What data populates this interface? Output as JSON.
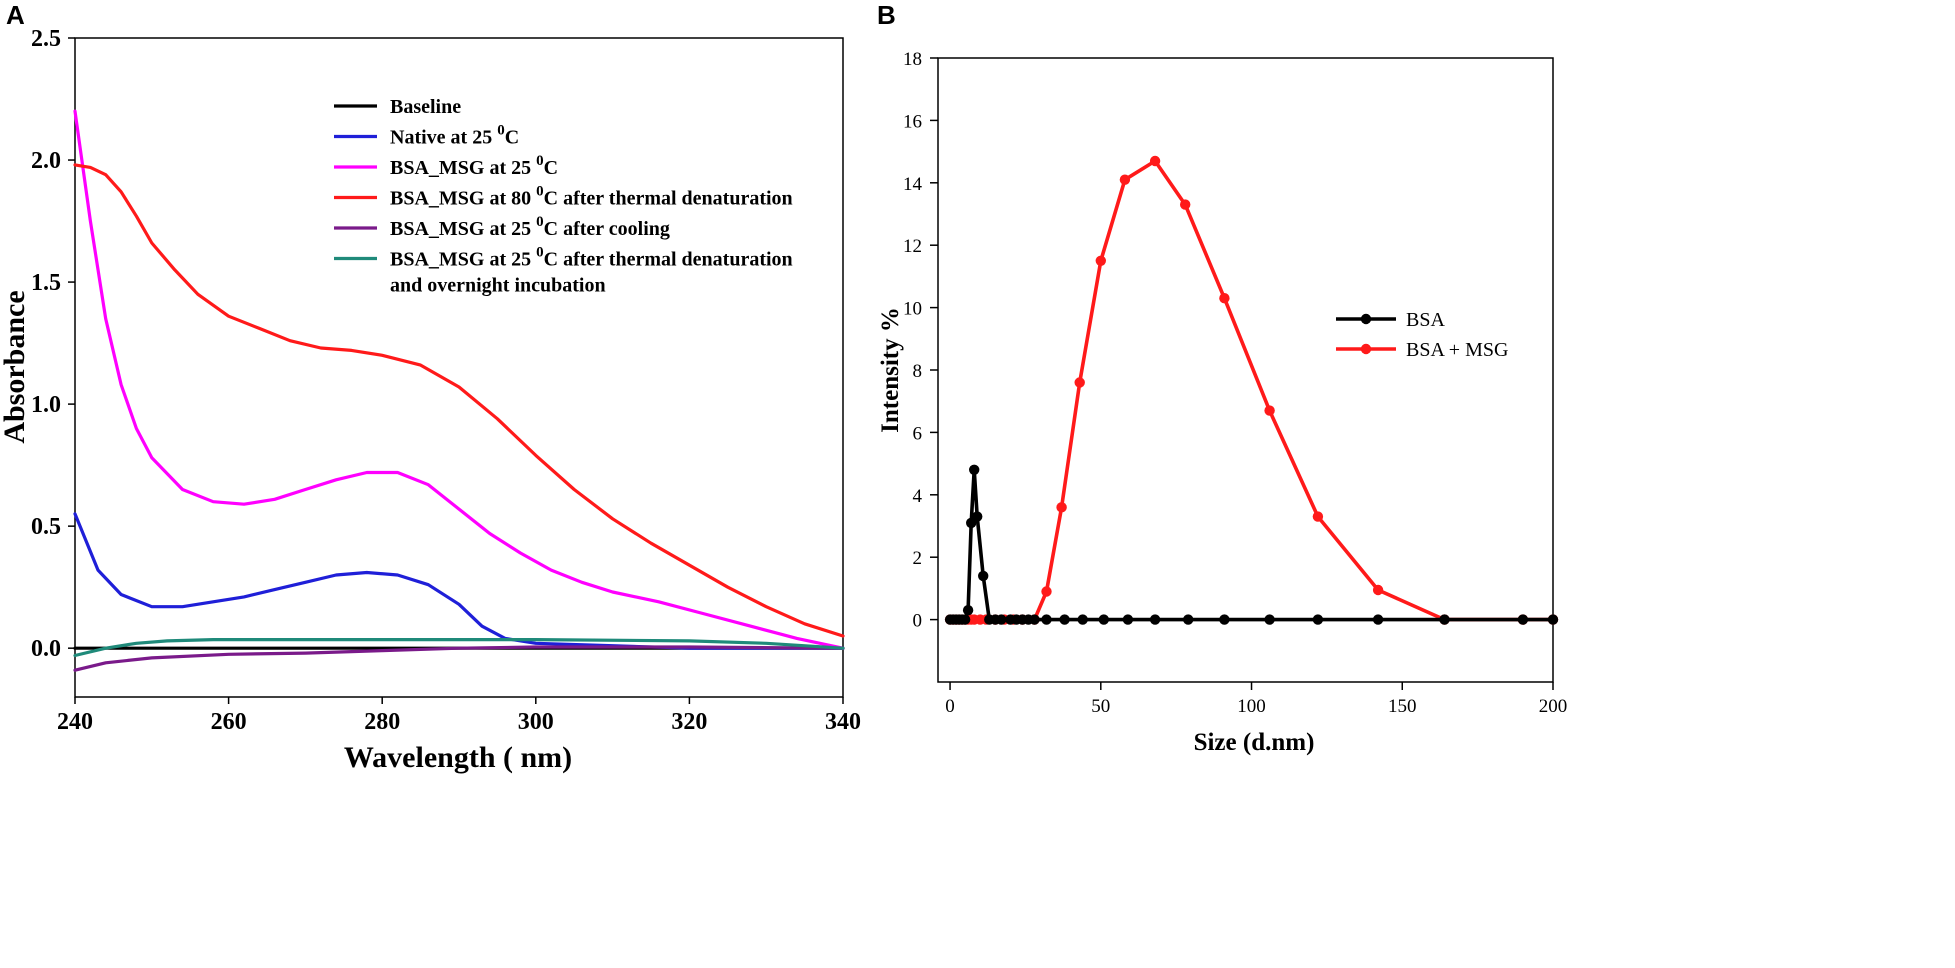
{
  "chart_data": [
    {
      "panel": "A",
      "type": "line",
      "xlabel": "Wavelength ( nm)",
      "ylabel": "Absorbance",
      "xlim": [
        240,
        340
      ],
      "ylim": [
        -0.2,
        2.5
      ],
      "xticks": [
        240,
        260,
        280,
        300,
        320,
        340
      ],
      "yticks": [
        "0.0",
        "0.5",
        "1.0",
        "1.5",
        "2.0",
        "2.5"
      ],
      "legend_position": "top-right",
      "series": [
        {
          "name": "Baseline",
          "color": "#000000",
          "points": [
            [
              240,
              0.0
            ],
            [
              260,
              0.0
            ],
            [
              280,
              0.0
            ],
            [
              300,
              0.0
            ],
            [
              320,
              0.0
            ],
            [
              340,
              0.0
            ]
          ]
        },
        {
          "name": "Native at 25 °C",
          "label_main": "Native at 25 ",
          "label_sup": "0",
          "label_tail": "C",
          "color": "#1f1fd8",
          "points": [
            [
              240,
              0.55
            ],
            [
              243,
              0.32
            ],
            [
              246,
              0.22
            ],
            [
              250,
              0.17
            ],
            [
              254,
              0.17
            ],
            [
              258,
              0.19
            ],
            [
              262,
              0.21
            ],
            [
              266,
              0.24
            ],
            [
              270,
              0.27
            ],
            [
              274,
              0.3
            ],
            [
              278,
              0.31
            ],
            [
              282,
              0.3
            ],
            [
              286,
              0.26
            ],
            [
              290,
              0.18
            ],
            [
              293,
              0.09
            ],
            [
              296,
              0.04
            ],
            [
              300,
              0.02
            ],
            [
              310,
              0.01
            ],
            [
              320,
              0.0
            ],
            [
              330,
              0.0
            ],
            [
              340,
              0.0
            ]
          ]
        },
        {
          "name": "BSA_MSG at 25 °C",
          "label_main": "BSA_MSG at 25 ",
          "label_sup": "0",
          "label_tail": "C",
          "color": "#ff00ff",
          "points": [
            [
              240,
              2.2
            ],
            [
              242,
              1.75
            ],
            [
              244,
              1.35
            ],
            [
              246,
              1.08
            ],
            [
              248,
              0.9
            ],
            [
              250,
              0.78
            ],
            [
              254,
              0.65
            ],
            [
              258,
              0.6
            ],
            [
              262,
              0.59
            ],
            [
              266,
              0.61
            ],
            [
              270,
              0.65
            ],
            [
              274,
              0.69
            ],
            [
              278,
              0.72
            ],
            [
              282,
              0.72
            ],
            [
              286,
              0.67
            ],
            [
              290,
              0.57
            ],
            [
              294,
              0.47
            ],
            [
              298,
              0.39
            ],
            [
              302,
              0.32
            ],
            [
              306,
              0.27
            ],
            [
              310,
              0.23
            ],
            [
              316,
              0.19
            ],
            [
              322,
              0.14
            ],
            [
              328,
              0.09
            ],
            [
              334,
              0.04
            ],
            [
              340,
              0.0
            ]
          ]
        },
        {
          "name": "BSA_MSG at 80 °C after thermal denaturation",
          "label_main": "BSA_MSG at 80 ",
          "label_sup": "0",
          "label_tail": "C after thermal denaturation",
          "color": "#ff1a1a",
          "points": [
            [
              240,
              1.98
            ],
            [
              242,
              1.97
            ],
            [
              244,
              1.94
            ],
            [
              246,
              1.87
            ],
            [
              248,
              1.77
            ],
            [
              250,
              1.66
            ],
            [
              253,
              1.55
            ],
            [
              256,
              1.45
            ],
            [
              260,
              1.36
            ],
            [
              264,
              1.31
            ],
            [
              268,
              1.26
            ],
            [
              272,
              1.23
            ],
            [
              276,
              1.22
            ],
            [
              280,
              1.2
            ],
            [
              285,
              1.16
            ],
            [
              290,
              1.07
            ],
            [
              295,
              0.94
            ],
            [
              300,
              0.79
            ],
            [
              305,
              0.65
            ],
            [
              310,
              0.53
            ],
            [
              315,
              0.43
            ],
            [
              320,
              0.34
            ],
            [
              325,
              0.25
            ],
            [
              330,
              0.17
            ],
            [
              335,
              0.1
            ],
            [
              340,
              0.05
            ]
          ]
        },
        {
          "name": "BSA_MSG at 25 °C after cooling",
          "label_main": "BSA_MSG at 25 ",
          "label_sup": "0",
          "label_tail": "C after cooling",
          "color": "#7a1a8a",
          "points": [
            [
              240,
              -0.09
            ],
            [
              244,
              -0.06
            ],
            [
              250,
              -0.04
            ],
            [
              260,
              -0.025
            ],
            [
              270,
              -0.02
            ],
            [
              280,
              -0.01
            ],
            [
              290,
              0.0
            ],
            [
              300,
              0.005
            ],
            [
              320,
              0.005
            ],
            [
              340,
              0.0
            ]
          ]
        },
        {
          "name": "BSA_MSG at 25 °C after thermal denaturation and overnight incubation",
          "label_main": "BSA_MSG at 25 ",
          "label_sup": "0",
          "label_tail": "C after thermal denaturation",
          "label_line2": "and overnight incubation",
          "color": "#1f8a7a",
          "points": [
            [
              240,
              -0.03
            ],
            [
              244,
              0.0
            ],
            [
              248,
              0.02
            ],
            [
              252,
              0.03
            ],
            [
              258,
              0.035
            ],
            [
              270,
              0.035
            ],
            [
              280,
              0.035
            ],
            [
              300,
              0.035
            ],
            [
              320,
              0.03
            ],
            [
              330,
              0.02
            ],
            [
              340,
              0.0
            ]
          ]
        }
      ]
    },
    {
      "panel": "B",
      "type": "line",
      "xlabel": "Size (d.nm)",
      "ylabel": "Intensity %",
      "xlim": [
        -4,
        200
      ],
      "ylim": [
        -2,
        18
      ],
      "xticks": [
        0,
        50,
        100,
        150,
        200
      ],
      "yticks": [
        0,
        2,
        4,
        6,
        8,
        10,
        12,
        14,
        16,
        18
      ],
      "legend_position": "center-right",
      "series": [
        {
          "name": "BSA",
          "color": "#000000",
          "points": [
            [
              0,
              0
            ],
            [
              1,
              0
            ],
            [
              2,
              0
            ],
            [
              3,
              0
            ],
            [
              4,
              0
            ],
            [
              5,
              0
            ],
            [
              6,
              0.3
            ],
            [
              7,
              3.1
            ],
            [
              8,
              4.8
            ],
            [
              9,
              3.3
            ],
            [
              11,
              1.4
            ],
            [
              13,
              0
            ],
            [
              15,
              0
            ],
            [
              17,
              0
            ],
            [
              20,
              0
            ],
            [
              22,
              0
            ],
            [
              24,
              0
            ],
            [
              26,
              0
            ],
            [
              28,
              0
            ],
            [
              32,
              0
            ],
            [
              38,
              0
            ],
            [
              44,
              0
            ],
            [
              51,
              0
            ],
            [
              59,
              0
            ],
            [
              68,
              0
            ],
            [
              79,
              0
            ],
            [
              91,
              0
            ],
            [
              106,
              0
            ],
            [
              122,
              0
            ],
            [
              142,
              0
            ],
            [
              164,
              0
            ],
            [
              190,
              0
            ],
            [
              200,
              0
            ]
          ]
        },
        {
          "name": "BSA + MSG",
          "color": "#ff1a1a",
          "points": [
            [
              0,
              0
            ],
            [
              1,
              0
            ],
            [
              2,
              0
            ],
            [
              3,
              0
            ],
            [
              4,
              0
            ],
            [
              5,
              0
            ],
            [
              6,
              0
            ],
            [
              7,
              0
            ],
            [
              8,
              0
            ],
            [
              10,
              0
            ],
            [
              12,
              0
            ],
            [
              15,
              0
            ],
            [
              18,
              0
            ],
            [
              21,
              0
            ],
            [
              24,
              0
            ],
            [
              28,
              0
            ],
            [
              32,
              0.9
            ],
            [
              37,
              3.6
            ],
            [
              43,
              7.6
            ],
            [
              50,
              11.5
            ],
            [
              58,
              14.1
            ],
            [
              68,
              14.7
            ],
            [
              78,
              13.3
            ],
            [
              91,
              10.3
            ],
            [
              106,
              6.7
            ],
            [
              122,
              3.3
            ],
            [
              142,
              0.95
            ],
            [
              164,
              0
            ],
            [
              190,
              0
            ],
            [
              200,
              0
            ]
          ]
        }
      ]
    }
  ]
}
